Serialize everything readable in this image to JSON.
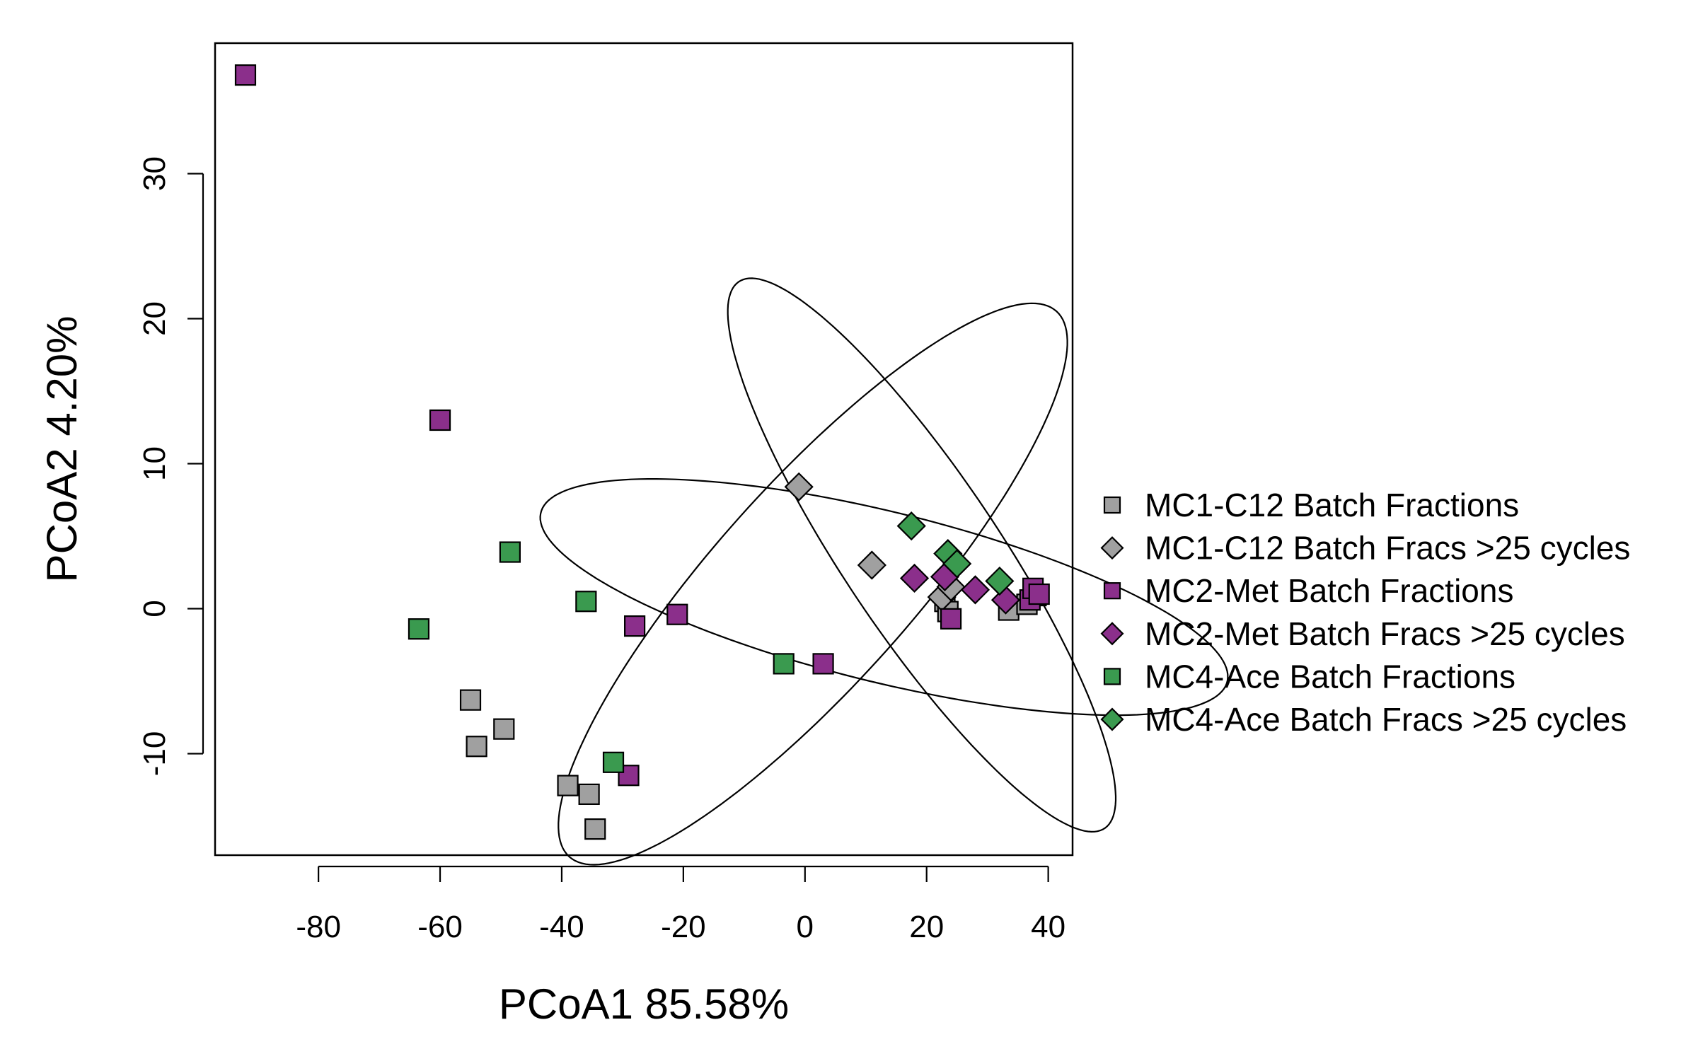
{
  "chart_data": {
    "type": "scatter",
    "xlabel": "PCoA1 85.58%",
    "ylabel": "PCoA2 4.20%",
    "xlim": [
      -97,
      44
    ],
    "ylim": [
      -17,
      39
    ],
    "xticks": [
      -80,
      -60,
      -40,
      -20,
      0,
      20,
      40
    ],
    "yticks": [
      -10,
      0,
      10,
      20,
      30
    ],
    "legend_position": "right",
    "series": [
      {
        "name": "MC1-C12 Batch Fractions",
        "marker": "square",
        "color": "#a0a0a0",
        "points": [
          [
            -55,
            -6.3
          ],
          [
            -54,
            -9.5
          ],
          [
            -49.5,
            -8.3
          ],
          [
            -39,
            -12.2
          ],
          [
            -35.5,
            -12.8
          ],
          [
            -34.5,
            -15.2
          ],
          [
            23,
            0.5
          ],
          [
            23.5,
            -0.2
          ],
          [
            33.5,
            -0.1
          ],
          [
            36.5,
            0.3
          ],
          [
            38,
            0.9
          ]
        ]
      },
      {
        "name": "MC1-C12 Batch Fracs >25 cycles",
        "marker": "diamond",
        "color": "#a0a0a0",
        "points": [
          [
            -1,
            8.4
          ],
          [
            11,
            3.0
          ],
          [
            22.5,
            0.8
          ],
          [
            24,
            1.5
          ]
        ]
      },
      {
        "name": "MC2-Met Batch Fractions",
        "marker": "square",
        "color": "#8b2f8b",
        "points": [
          [
            -92,
            36.8
          ],
          [
            -60,
            13.0
          ],
          [
            -28,
            -1.2
          ],
          [
            -21,
            -0.4
          ],
          [
            -29,
            -11.5
          ],
          [
            3,
            -3.8
          ],
          [
            24,
            -0.7
          ],
          [
            37,
            0.6
          ],
          [
            37.5,
            1.4
          ],
          [
            38.5,
            1.0
          ]
        ]
      },
      {
        "name": "MC2-Met Batch Fracs >25 cycles",
        "marker": "diamond",
        "color": "#8b2f8b",
        "points": [
          [
            18,
            2.1
          ],
          [
            23,
            2.2
          ],
          [
            28,
            1.3
          ],
          [
            33,
            0.6
          ]
        ]
      },
      {
        "name": "MC4-Ace Batch Fractions",
        "marker": "square",
        "color": "#3a9a4f",
        "points": [
          [
            -63.5,
            -1.4
          ],
          [
            -48.5,
            3.9
          ],
          [
            -36,
            0.5
          ],
          [
            -31.5,
            -10.6
          ],
          [
            -3.5,
            -3.8
          ]
        ]
      },
      {
        "name": "MC4-Ace Batch Fracs >25 cycles",
        "marker": "diamond",
        "color": "#3a9a4f",
        "points": [
          [
            17.5,
            5.7
          ],
          [
            23.5,
            3.8
          ],
          [
            25,
            3.1
          ],
          [
            32,
            1.9
          ]
        ]
      }
    ],
    "ellipses": [
      {
        "cx": 13,
        "cy": 0.8,
        "rx": 56.8,
        "ry": 6.0,
        "angle_deg": -5.6
      },
      {
        "cx": 1.3,
        "cy": 1.7,
        "rx": 45.2,
        "ry": 9.1,
        "angle_deg": 22.7
      },
      {
        "cx": 19.2,
        "cy": 3.7,
        "rx": 36.3,
        "ry": 8.0,
        "angle_deg": -29.3
      }
    ]
  }
}
